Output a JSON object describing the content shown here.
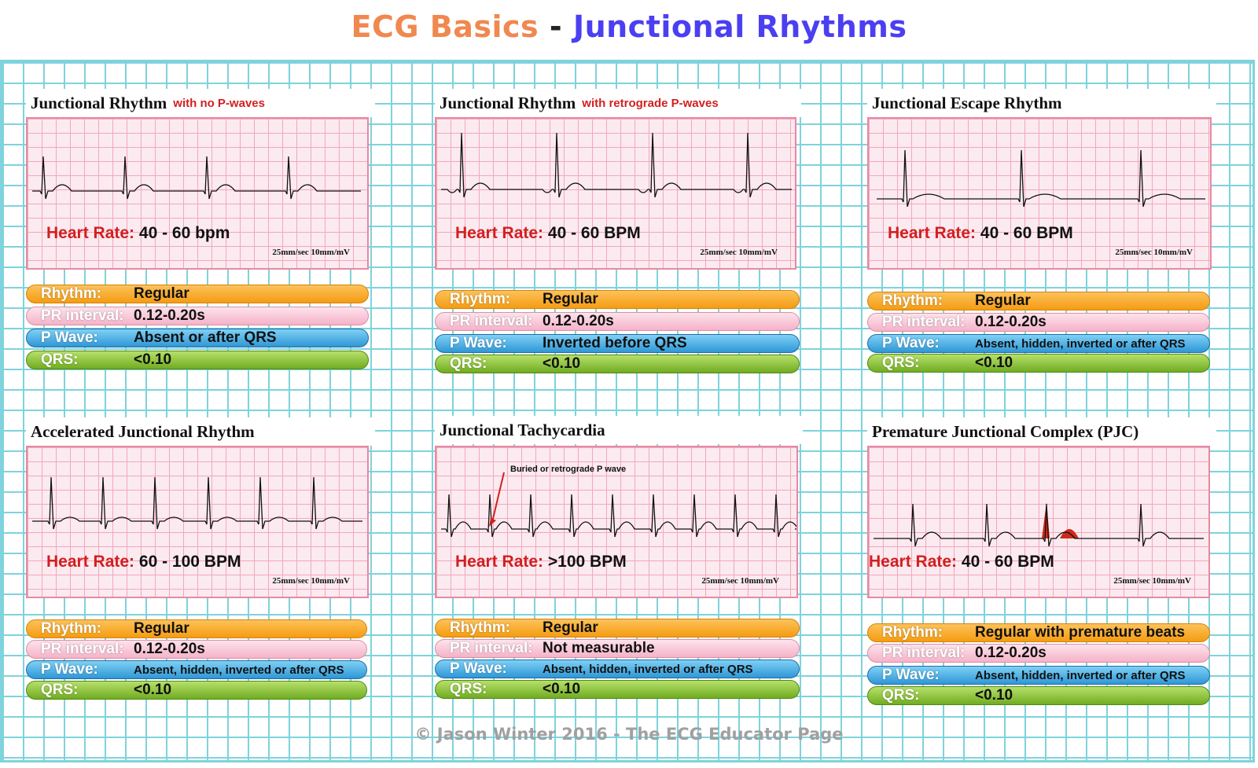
{
  "title": {
    "part1": "ECG Basics",
    "separator": "-",
    "part2": "Junctional Rhythms"
  },
  "colors": {
    "title_left": "#f0884f",
    "title_right": "#4b3ff2",
    "grid": "#7ed3dc",
    "strip_grid": "#f2a8bc",
    "heart_rate_label": "#d21f1f",
    "pjc_highlight": "#cc2a1a"
  },
  "panels": [
    {
      "name": "Junctional Rhythm",
      "subtitle": "with no P-waves",
      "heart_rate_label": "Heart Rate:",
      "heart_rate_value": "40 - 60 bpm",
      "speed": "25mm/sec  10mm/mV",
      "note": "",
      "rhythm_label": "Rhythm:",
      "rhythm_value": "Regular",
      "pr_label": "PR interval:",
      "pr_value": "0.12-0.20s",
      "pwave_label": "P Wave:",
      "pwave_value": "Absent or after QRS",
      "qrs_label": "QRS:",
      "qrs_value": "<0.10"
    },
    {
      "name": "Junctional Rhythm",
      "subtitle": "with retrograde P-waves",
      "heart_rate_label": "Heart Rate:",
      "heart_rate_value": "40 - 60 BPM",
      "speed": "25mm/sec  10mm/mV",
      "note": "",
      "rhythm_label": "Rhythm:",
      "rhythm_value": "Regular",
      "pr_label": "PR interval:",
      "pr_value": "0.12-0.20s",
      "pwave_label": "P Wave:",
      "pwave_value": "Inverted before QRS",
      "qrs_label": "QRS:",
      "qrs_value": "<0.10"
    },
    {
      "name": "Junctional Escape Rhythm",
      "subtitle": "",
      "heart_rate_label": "Heart Rate:",
      "heart_rate_value": "40 - 60 BPM",
      "speed": "25mm/sec  10mm/mV",
      "note": "",
      "rhythm_label": "Rhythm:",
      "rhythm_value": "Regular",
      "pr_label": "PR interval:",
      "pr_value": "0.12-0.20s",
      "pwave_label": "P Wave:",
      "pwave_value": "Absent, hidden, inverted or after QRS",
      "qrs_label": "QRS:",
      "qrs_value": "<0.10"
    },
    {
      "name": "Accelerated Junctional Rhythm",
      "subtitle": "",
      "heart_rate_label": "Heart Rate:",
      "heart_rate_value": "60 - 100 BPM",
      "speed": "25mm/sec  10mm/mV",
      "note": "",
      "rhythm_label": "Rhythm:",
      "rhythm_value": "Regular",
      "pr_label": "PR interval:",
      "pr_value": "0.12-0.20s",
      "pwave_label": "P Wave:",
      "pwave_value": "Absent, hidden, inverted or after QRS",
      "qrs_label": "QRS:",
      "qrs_value": "<0.10"
    },
    {
      "name": "Junctional Tachycardia",
      "subtitle": "",
      "heart_rate_label": "Heart Rate:",
      "heart_rate_value": ">100 BPM",
      "speed": "25mm/sec  10mm/mV",
      "note": "Buried or retrograde P wave",
      "rhythm_label": "Rhythm:",
      "rhythm_value": "Regular",
      "pr_label": "PR interval:",
      "pr_value": "Not measurable",
      "pwave_label": "P Wave:",
      "pwave_value": "Absent, hidden, inverted or after QRS",
      "qrs_label": "QRS:",
      "qrs_value": "<0.10"
    },
    {
      "name": "Premature Junctional Complex  (PJC)",
      "subtitle": "",
      "heart_rate_label": "Heart Rate:",
      "heart_rate_value": "40 - 60 BPM",
      "speed": "25mm/sec  10mm/mV",
      "note": "",
      "rhythm_label": "Rhythm:",
      "rhythm_value": "Regular with premature beats",
      "pr_label": "PR interval:",
      "pr_value": "0.12-0.20s",
      "pwave_label": "P Wave:",
      "pwave_value": "Absent, hidden, inverted or after QRS",
      "qrs_label": "QRS:",
      "qrs_value": "<0.10"
    }
  ],
  "credit": "© Jason Winter 2016 - The ECG Educator Page"
}
